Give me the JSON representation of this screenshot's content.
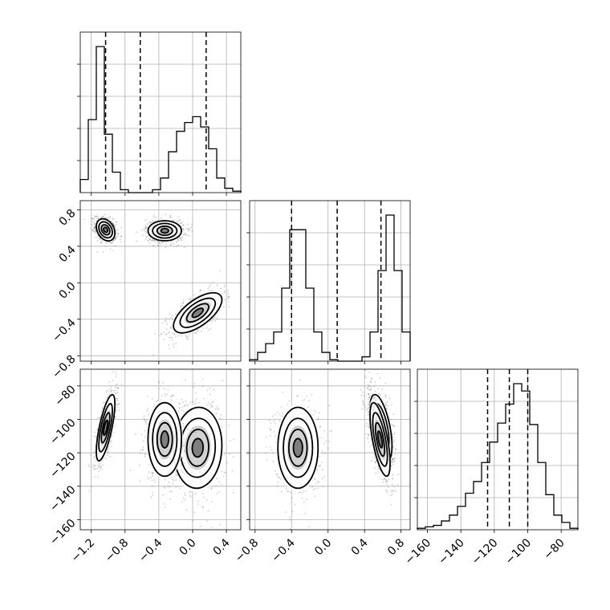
{
  "chart_data": {
    "type": "corner",
    "params": [
      {
        "range": [
          -1.33,
          0.57
        ],
        "quantiles": [
          -1.03,
          -0.62,
          0.16
        ]
      },
      {
        "range": [
          -0.86,
          0.9
        ],
        "quantiles": [
          -0.4,
          0.1,
          0.58
        ]
      },
      {
        "range": [
          -166,
          -70
        ],
        "quantiles": [
          -124,
          -111,
          -100
        ]
      }
    ],
    "ticks": [
      {
        "values": [
          -1.2,
          -0.8,
          -0.4,
          0.0,
          0.4
        ],
        "labels": [
          "−1.2",
          "−0.8",
          "−0.4",
          "0.0",
          "0.4"
        ]
      },
      {
        "values": [
          -0.8,
          -0.4,
          0.0,
          0.4,
          0.8
        ],
        "labels": [
          "−0.8",
          "−0.4",
          "0.0",
          "0.4",
          "0.8"
        ]
      },
      {
        "values": [
          -160,
          -140,
          -120,
          -100,
          -80
        ],
        "labels": [
          "−160",
          "−140",
          "−120",
          "−100",
          "−80"
        ]
      }
    ],
    "histograms": [
      {
        "edges_start": -1.33,
        "bin_width": 0.095,
        "counts": [
          0.09,
          0.5,
          1.0,
          0.4,
          0.14,
          0.02,
          0,
          0,
          0,
          0.02,
          0.1,
          0.28,
          0.42,
          0.48,
          0.52,
          0.45,
          0.3,
          0.1,
          0.03,
          0.01
        ]
      },
      {
        "edges_start": -0.86,
        "bin_width": 0.088,
        "counts": [
          0.01,
          0.06,
          0.12,
          0.2,
          0.5,
          0.9,
          0.9,
          0.5,
          0.2,
          0.06,
          0.01,
          0,
          0,
          0,
          0.03,
          0.2,
          0.62,
          1.0,
          0.62,
          0.2
        ]
      },
      {
        "edges_start": -166,
        "bin_width": 4.8,
        "counts": [
          0.01,
          0.02,
          0.03,
          0.06,
          0.1,
          0.16,
          0.25,
          0.33,
          0.46,
          0.6,
          0.73,
          0.86,
          1.0,
          0.95,
          0.72,
          0.46,
          0.24,
          0.1,
          0.05,
          0.01
        ]
      }
    ],
    "clusters": [
      {
        "center": [
          -1.03,
          0.58,
          -105
        ],
        "sigma": [
          0.05,
          0.055,
          9
        ],
        "corr": {
          "01": -0.3,
          "02": 0.72,
          "12": -0.55
        }
      },
      {
        "center": [
          0.06,
          -0.33,
          -117
        ],
        "sigma": [
          0.13,
          0.1,
          11
        ],
        "corr": {
          "01": 0.65,
          "02": 0.05,
          "12": 0.0
        }
      },
      {
        "center": [
          -0.33,
          0.57,
          -112
        ],
        "sigma": [
          0.09,
          0.05,
          10
        ],
        "corr": {
          "01": 0.0,
          "02": 0.0,
          "12": -0.65
        }
      }
    ],
    "grid": true,
    "histogram_color": "#000000",
    "quantile_style": "dashed"
  }
}
